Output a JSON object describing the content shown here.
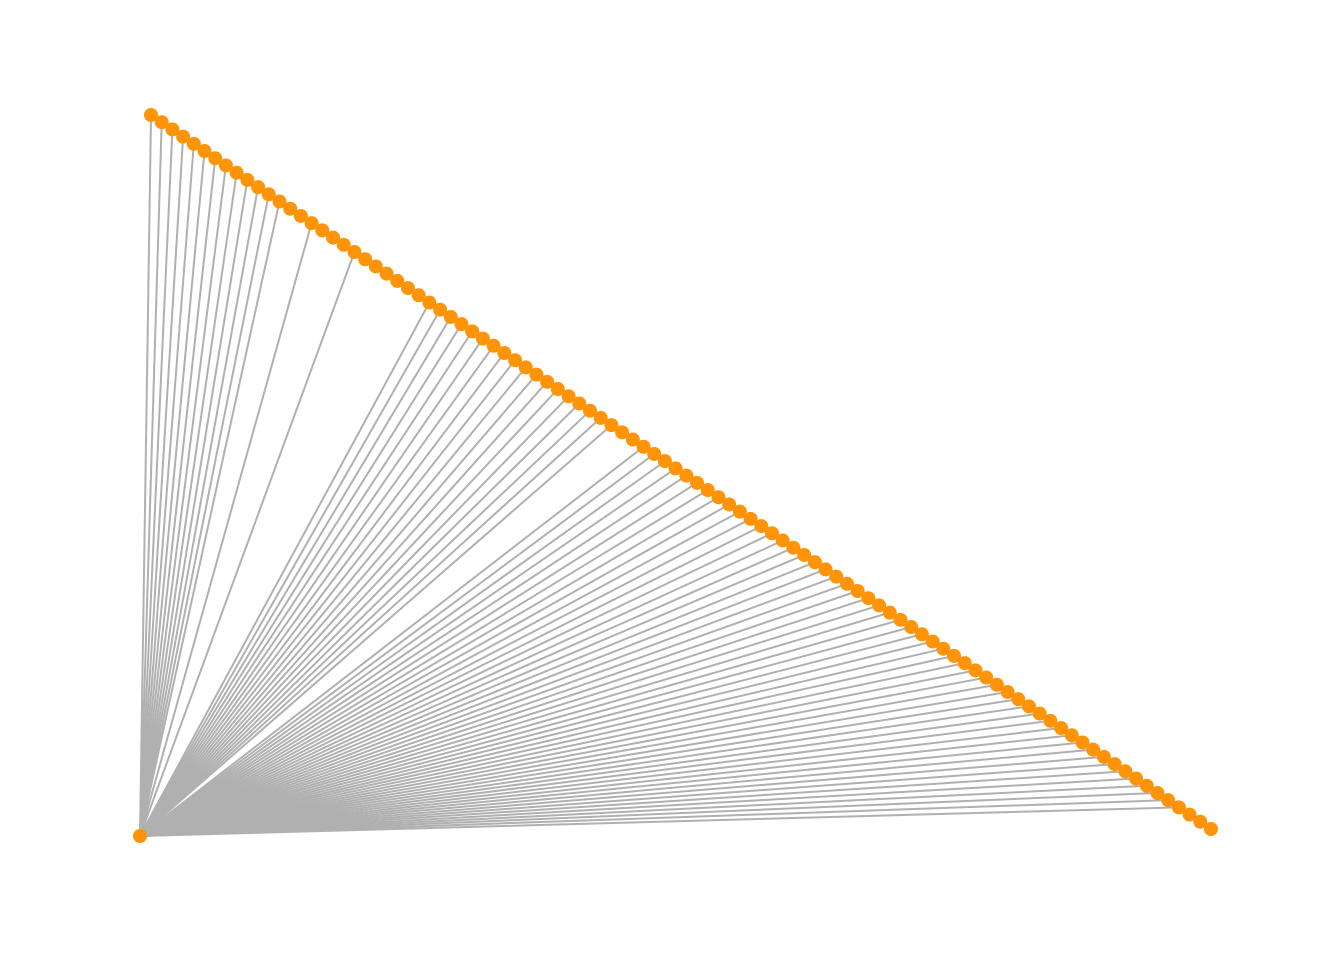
{
  "diagram": {
    "type": "star-graph",
    "hub_label": "hub",
    "chain_node_count": 100,
    "connected_chain_indices": [
      0,
      1,
      2,
      3,
      4,
      5,
      6,
      7,
      8,
      9,
      10,
      11,
      12,
      15,
      19,
      26,
      27,
      28,
      29,
      30,
      31,
      32,
      33,
      34,
      35,
      36,
      37,
      38,
      39,
      40,
      41,
      42,
      43,
      46,
      47,
      48,
      49,
      50,
      51,
      52,
      53,
      54,
      55,
      56,
      57,
      58,
      59,
      60,
      61,
      62,
      63,
      64,
      65,
      66,
      67,
      68,
      69,
      70,
      71,
      72,
      73,
      74,
      75,
      76,
      77,
      78,
      79,
      80,
      81,
      82,
      83,
      84,
      85,
      86,
      87,
      88,
      89,
      90,
      91,
      92,
      93,
      94,
      95,
      96
    ],
    "colors": {
      "node": "#ff9408",
      "edge": "#b0b0b0",
      "background": "#ffffff"
    }
  }
}
